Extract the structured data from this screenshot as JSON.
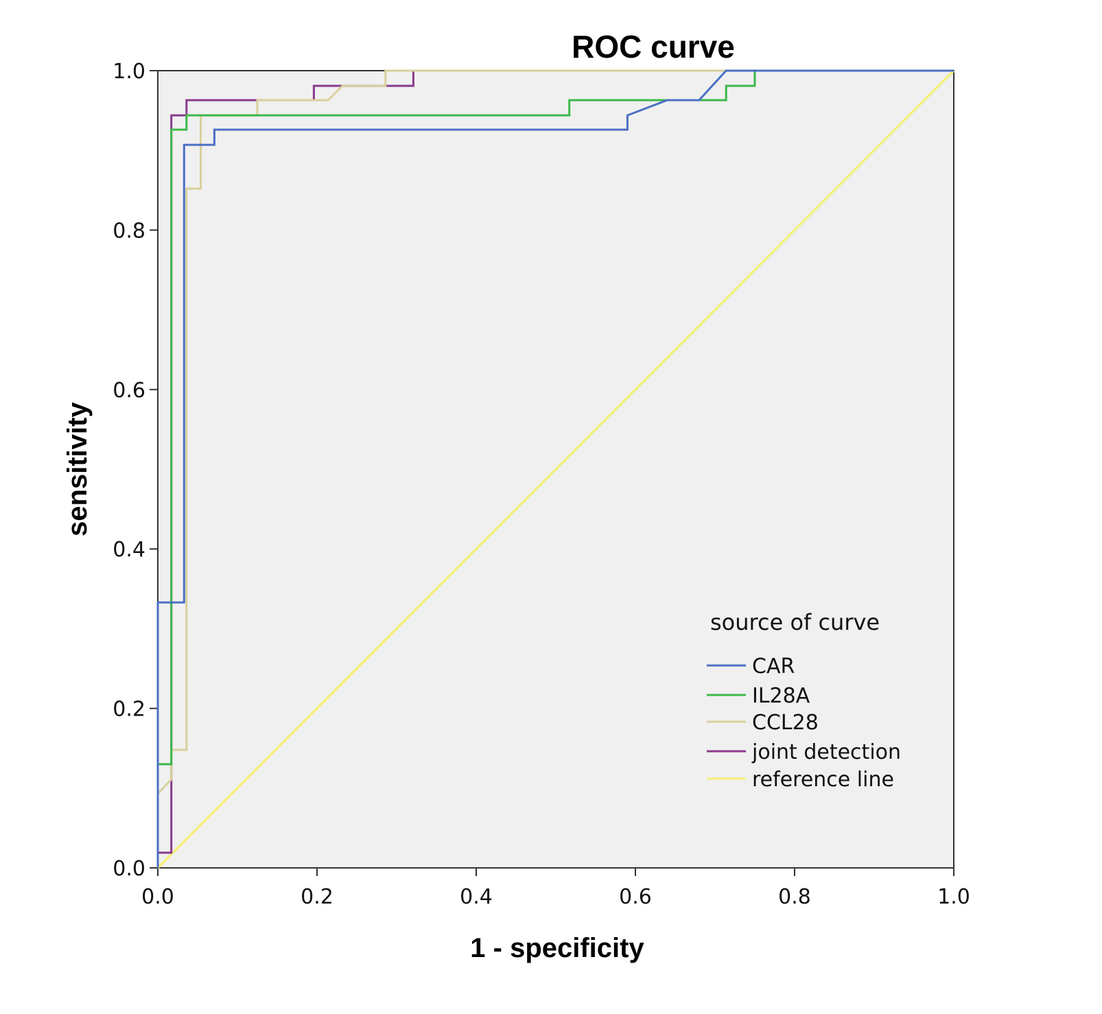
{
  "chart_data": {
    "type": "line",
    "title": "ROC curve",
    "xlabel": "1 - specificity",
    "ylabel": "sensitivity",
    "xlim": [
      0,
      1
    ],
    "ylim": [
      0,
      1
    ],
    "xticks": [
      "0.0",
      "0.2",
      "0.4",
      "0.6",
      "0.8",
      "1.0"
    ],
    "yticks": [
      "0.0",
      "0.2",
      "0.4",
      "0.6",
      "0.8",
      "1.0"
    ],
    "background": "#f0f0f0",
    "grid": false,
    "legend": {
      "title": "source of curve",
      "placement": "bottom-right"
    },
    "series": [
      {
        "name": "CAR",
        "color": "#4a6fc4",
        "points": [
          [
            0,
            0
          ],
          [
            0,
            0.333
          ],
          [
            0.033,
            0.333
          ],
          [
            0.033,
            0.907
          ],
          [
            0.071,
            0.907
          ],
          [
            0.071,
            0.926
          ],
          [
            0.59,
            0.926
          ],
          [
            0.59,
            0.944
          ],
          [
            0.64,
            0.963
          ],
          [
            0.68,
            0.963
          ],
          [
            0.714,
            1
          ],
          [
            1,
            1
          ]
        ]
      },
      {
        "name": "IL28A",
        "color": "#3cb84a",
        "points": [
          [
            0,
            0
          ],
          [
            0,
            0.13
          ],
          [
            0.017,
            0.13
          ],
          [
            0.017,
            0.926
          ],
          [
            0.036,
            0.926
          ],
          [
            0.036,
            0.944
          ],
          [
            0.517,
            0.944
          ],
          [
            0.517,
            0.963
          ],
          [
            0.714,
            0.963
          ],
          [
            0.714,
            0.981
          ],
          [
            0.75,
            0.981
          ],
          [
            0.75,
            1
          ],
          [
            1,
            1
          ]
        ]
      },
      {
        "name": "CCL28",
        "color": "#d8cf9c",
        "points": [
          [
            0,
            0.093
          ],
          [
            0.017,
            0.111
          ],
          [
            0.017,
            0.148
          ],
          [
            0.036,
            0.148
          ],
          [
            0.036,
            0.852
          ],
          [
            0.054,
            0.852
          ],
          [
            0.054,
            0.944
          ],
          [
            0.125,
            0.944
          ],
          [
            0.125,
            0.963
          ],
          [
            0.214,
            0.963
          ],
          [
            0.232,
            0.981
          ],
          [
            0.286,
            0.981
          ],
          [
            0.286,
            1
          ],
          [
            1,
            1
          ]
        ]
      },
      {
        "name": "joint detection",
        "color": "#8a3a8c",
        "points": [
          [
            0,
            0
          ],
          [
            0,
            0.019
          ],
          [
            0.017,
            0.019
          ],
          [
            0.017,
            0.944
          ],
          [
            0.036,
            0.944
          ],
          [
            0.036,
            0.963
          ],
          [
            0.196,
            0.963
          ],
          [
            0.196,
            0.981
          ],
          [
            0.321,
            0.981
          ],
          [
            0.321,
            1
          ],
          [
            1,
            1
          ]
        ]
      },
      {
        "name": "reference line",
        "color": "#f5f07a",
        "points": [
          [
            0,
            0
          ],
          [
            1,
            1
          ]
        ]
      }
    ]
  }
}
